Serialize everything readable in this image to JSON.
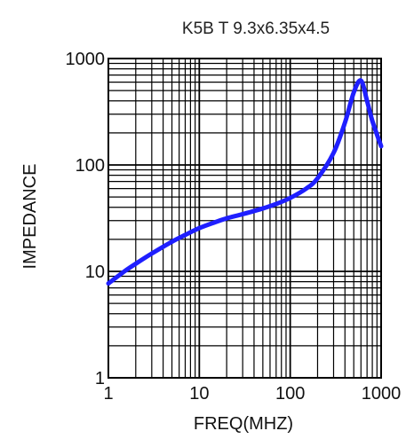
{
  "chart_data": {
    "type": "line",
    "title": "K5B T 9.3x6.35x4.5",
    "xlabel": "FREQ(MHZ)",
    "ylabel": "IMPEDANCE",
    "x_scale": "log",
    "y_scale": "log",
    "xlim": [
      1,
      1000
    ],
    "ylim": [
      1,
      1000
    ],
    "x_ticks": [
      "1",
      "10",
      "100",
      "1000"
    ],
    "y_ticks": [
      "1",
      "10",
      "100",
      "1000"
    ],
    "grid": true,
    "colors": {
      "series": "#1f1fff",
      "grid": "#000000"
    },
    "series": [
      {
        "x": [
          1,
          1.5,
          2,
          3,
          5,
          7,
          10,
          15,
          20,
          30,
          50,
          70,
          100,
          150,
          200,
          300,
          400,
          500,
          600,
          700,
          800,
          1000
        ],
        "y": [
          7.7,
          10,
          11.8,
          14.7,
          19,
          22,
          25.5,
          29,
          31.5,
          34.5,
          39,
          43,
          49,
          60,
          75,
          130,
          250,
          480,
          620,
          400,
          260,
          150
        ]
      }
    ]
  }
}
